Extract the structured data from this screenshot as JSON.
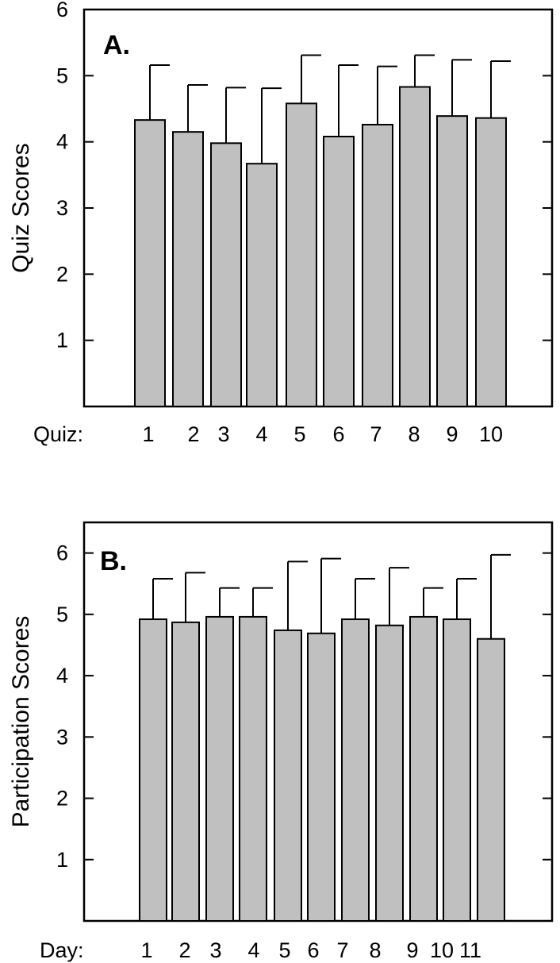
{
  "chart_data": [
    {
      "type": "bar",
      "panel_label": "A.",
      "ylabel": "Quiz Scores",
      "category_axis_title": "Quiz:",
      "ylim": [
        0,
        6
      ],
      "yticks": [
        1,
        2,
        3,
        4,
        5,
        6
      ],
      "categories": [
        "1",
        "2",
        "3",
        "4",
        "5",
        "6",
        "7",
        "8",
        "9",
        "10"
      ],
      "values": [
        4.33,
        4.15,
        3.98,
        3.67,
        4.58,
        4.08,
        4.26,
        4.83,
        4.39,
        4.36
      ],
      "error_upper": [
        5.16,
        4.86,
        4.82,
        4.81,
        5.31,
        5.16,
        5.14,
        5.31,
        5.24,
        5.22
      ],
      "grid": false
    },
    {
      "type": "bar",
      "panel_label": "B.",
      "ylabel": "Participation Scores",
      "category_axis_title": "Day:",
      "ylim": [
        0,
        6.5
      ],
      "yticks": [
        1,
        2,
        3,
        4,
        5,
        6
      ],
      "categories": [
        "1",
        "2",
        "3",
        "4",
        "5",
        "6",
        "7",
        "8",
        "9",
        "10",
        "11"
      ],
      "values": [
        4.92,
        4.87,
        4.96,
        4.96,
        4.74,
        4.69,
        4.92,
        4.82,
        4.96,
        4.92,
        4.6
      ],
      "error_upper": [
        5.58,
        5.68,
        5.43,
        5.43,
        5.86,
        5.91,
        5.58,
        5.76,
        5.43,
        5.58,
        5.97
      ],
      "grid": false
    }
  ]
}
